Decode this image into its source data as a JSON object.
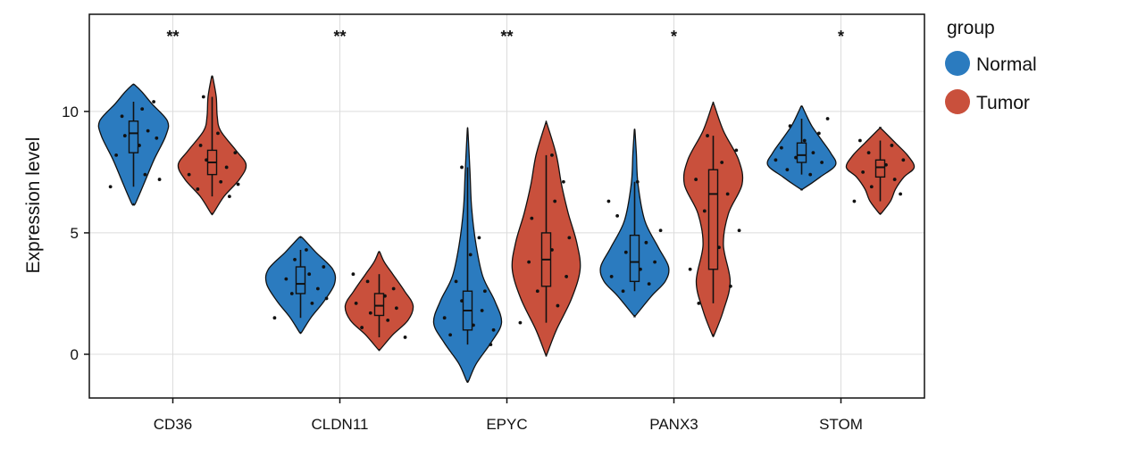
{
  "chart_data": {
    "type": "violin",
    "ylabel": "Expression level",
    "xlabel": "",
    "ylim": [
      -1.8,
      14
    ],
    "yticks": [
      0,
      5,
      10
    ],
    "grid": true,
    "legend": {
      "title": "group",
      "placement": "right",
      "items": [
        {
          "label": "Normal",
          "color": "#2b7bbf"
        },
        {
          "label": "Tumor",
          "color": "#c9503c"
        }
      ]
    },
    "categories": [
      "CD36",
      "CLDN11",
      "EPYC",
      "PANX3",
      "STOM"
    ],
    "significance": [
      "**",
      "**",
      "**",
      "*",
      "*"
    ],
    "series": [
      {
        "name": "Normal",
        "color": "#2b7bbf",
        "groups": [
          {
            "min": 6.2,
            "q1": 8.3,
            "median": 9.1,
            "q3": 9.6,
            "max": 11.1,
            "range": [
              6.9,
              10.4
            ],
            "density": [
              [
                6.2,
                0.05
              ],
              [
                7.0,
                0.3
              ],
              [
                8.0,
                0.6
              ],
              [
                9.0,
                0.95
              ],
              [
                9.6,
                1.0
              ],
              [
                10.3,
                0.55
              ],
              [
                10.8,
                0.25
              ],
              [
                11.1,
                0.03
              ]
            ],
            "points": [
              [
                6.9,
                -0.8
              ],
              [
                7.4,
                0.4
              ],
              [
                8.2,
                -0.6
              ],
              [
                8.6,
                0.2
              ],
              [
                9.0,
                -0.3
              ],
              [
                9.2,
                0.5
              ],
              [
                9.5,
                0.1
              ],
              [
                9.8,
                -0.4
              ],
              [
                10.1,
                0.3
              ],
              [
                10.4,
                0.7
              ],
              [
                8.9,
                0.8
              ],
              [
                7.2,
                0.9
              ]
            ]
          },
          {
            "min": 0.9,
            "q1": 2.5,
            "median": 2.9,
            "q3": 3.6,
            "max": 4.8,
            "range": [
              1.5,
              4.3
            ],
            "density": [
              [
                0.9,
                0.03
              ],
              [
                1.5,
                0.3
              ],
              [
                2.2,
                0.7
              ],
              [
                2.9,
                1.0
              ],
              [
                3.5,
                0.95
              ],
              [
                4.2,
                0.45
              ],
              [
                4.8,
                0.05
              ]
            ],
            "points": [
              [
                1.5,
                -0.9
              ],
              [
                2.1,
                0.4
              ],
              [
                2.5,
                -0.3
              ],
              [
                2.7,
                0.6
              ],
              [
                2.9,
                0.1
              ],
              [
                3.1,
                -0.5
              ],
              [
                3.3,
                0.3
              ],
              [
                3.6,
                0.8
              ],
              [
                3.9,
                -0.2
              ],
              [
                4.3,
                0.2
              ],
              [
                2.3,
                0.9
              ]
            ]
          },
          {
            "min": -1.1,
            "q1": 1.0,
            "median": 1.8,
            "q3": 2.6,
            "max": 9.2,
            "range": [
              0.4,
              7.7
            ],
            "density": [
              [
                -1.1,
                0.03
              ],
              [
                -0.4,
                0.25
              ],
              [
                0.5,
                0.7
              ],
              [
                1.3,
                1.0
              ],
              [
                2.2,
                0.8
              ],
              [
                3.2,
                0.45
              ],
              [
                4.5,
                0.25
              ],
              [
                6.0,
                0.12
              ],
              [
                7.5,
                0.07
              ],
              [
                9.2,
                0.01
              ]
            ],
            "points": [
              [
                0.4,
                0.8
              ],
              [
                0.8,
                -0.6
              ],
              [
                1.2,
                0.2
              ],
              [
                1.5,
                -0.8
              ],
              [
                1.8,
                0.5
              ],
              [
                2.2,
                -0.2
              ],
              [
                2.6,
                0.6
              ],
              [
                3.0,
                -0.4
              ],
              [
                4.1,
                0.1
              ],
              [
                4.8,
                0.4
              ],
              [
                7.7,
                -0.2
              ],
              [
                1.0,
                0.9
              ]
            ]
          },
          {
            "min": 1.6,
            "q1": 3.0,
            "median": 3.8,
            "q3": 4.9,
            "max": 9.2,
            "range": [
              2.6,
              7.1
            ],
            "density": [
              [
                1.6,
                0.03
              ],
              [
                2.4,
                0.5
              ],
              [
                3.0,
                0.9
              ],
              [
                3.6,
                1.0
              ],
              [
                4.4,
                0.7
              ],
              [
                5.5,
                0.3
              ],
              [
                7.0,
                0.1
              ],
              [
                8.3,
                0.05
              ],
              [
                9.2,
                0.01
              ]
            ],
            "points": [
              [
                2.6,
                -0.4
              ],
              [
                2.9,
                0.5
              ],
              [
                3.2,
                -0.8
              ],
              [
                3.5,
                0.2
              ],
              [
                3.8,
                0.7
              ],
              [
                4.2,
                -0.3
              ],
              [
                4.6,
                0.4
              ],
              [
                5.1,
                0.9
              ],
              [
                5.7,
                -0.6
              ],
              [
                6.3,
                -0.9
              ],
              [
                7.1,
                0.1
              ]
            ]
          },
          {
            "min": 6.8,
            "q1": 7.9,
            "median": 8.2,
            "q3": 8.7,
            "max": 10.2,
            "range": [
              7.4,
              9.7
            ],
            "density": [
              [
                6.8,
                0.03
              ],
              [
                7.3,
                0.55
              ],
              [
                7.8,
                1.0
              ],
              [
                8.3,
                0.85
              ],
              [
                8.8,
                0.6
              ],
              [
                9.4,
                0.3
              ],
              [
                9.9,
                0.12
              ],
              [
                10.2,
                0.02
              ]
            ],
            "points": [
              [
                7.4,
                0.3
              ],
              [
                7.6,
                -0.5
              ],
              [
                7.9,
                0.7
              ],
              [
                8.1,
                -0.2
              ],
              [
                8.3,
                0.4
              ],
              [
                8.5,
                -0.7
              ],
              [
                8.8,
                0.1
              ],
              [
                9.1,
                0.6
              ],
              [
                9.4,
                -0.4
              ],
              [
                9.7,
                0.9
              ],
              [
                8.0,
                -0.9
              ]
            ]
          }
        ]
      },
      {
        "name": "Tumor",
        "color": "#c9503c",
        "groups": [
          {
            "min": 5.8,
            "q1": 7.4,
            "median": 7.9,
            "q3": 8.4,
            "max": 11.4,
            "range": [
              6.5,
              10.6
            ],
            "density": [
              [
                5.8,
                0.03
              ],
              [
                6.5,
                0.35
              ],
              [
                7.2,
                0.8
              ],
              [
                7.8,
                1.0
              ],
              [
                8.4,
                0.7
              ],
              [
                9.2,
                0.25
              ],
              [
                9.8,
                0.15
              ],
              [
                10.6,
                0.12
              ],
              [
                11.4,
                0.02
              ]
            ],
            "points": [
              [
                6.5,
                0.6
              ],
              [
                6.8,
                -0.5
              ],
              [
                7.1,
                0.3
              ],
              [
                7.4,
                -0.8
              ],
              [
                7.7,
                0.5
              ],
              [
                8.0,
                -0.2
              ],
              [
                8.3,
                0.8
              ],
              [
                8.6,
                -0.4
              ],
              [
                9.1,
                0.2
              ],
              [
                10.6,
                -0.3
              ],
              [
                7.0,
                0.9
              ]
            ]
          },
          {
            "min": 0.2,
            "q1": 1.6,
            "median": 2.0,
            "q3": 2.5,
            "max": 4.2,
            "range": [
              0.7,
              3.3
            ],
            "density": [
              [
                0.2,
                0.03
              ],
              [
                0.8,
                0.4
              ],
              [
                1.4,
                0.85
              ],
              [
                2.0,
                1.0
              ],
              [
                2.6,
                0.75
              ],
              [
                3.3,
                0.4
              ],
              [
                3.8,
                0.15
              ],
              [
                4.2,
                0.02
              ]
            ],
            "points": [
              [
                0.7,
                0.9
              ],
              [
                1.1,
                -0.6
              ],
              [
                1.4,
                0.3
              ],
              [
                1.7,
                -0.3
              ],
              [
                1.9,
                0.6
              ],
              [
                2.1,
                -0.8
              ],
              [
                2.4,
                0.2
              ],
              [
                2.7,
                0.5
              ],
              [
                3.0,
                -0.4
              ],
              [
                3.3,
                -0.9
              ]
            ]
          },
          {
            "min": 0.0,
            "q1": 2.8,
            "median": 3.9,
            "q3": 5.0,
            "max": 9.5,
            "range": [
              1.3,
              8.2
            ],
            "density": [
              [
                0.0,
                0.02
              ],
              [
                1.0,
                0.3
              ],
              [
                2.3,
                0.75
              ],
              [
                3.5,
                1.0
              ],
              [
                4.6,
                0.9
              ],
              [
                5.8,
                0.65
              ],
              [
                7.0,
                0.45
              ],
              [
                8.2,
                0.3
              ],
              [
                9.5,
                0.02
              ]
            ],
            "points": [
              [
                1.3,
                -0.9
              ],
              [
                2.0,
                0.4
              ],
              [
                2.6,
                -0.3
              ],
              [
                3.2,
                0.7
              ],
              [
                3.8,
                -0.6
              ],
              [
                4.3,
                0.2
              ],
              [
                4.8,
                0.8
              ],
              [
                5.6,
                -0.5
              ],
              [
                6.3,
                0.3
              ],
              [
                7.1,
                0.6
              ],
              [
                8.2,
                0.2
              ]
            ]
          },
          {
            "min": 0.8,
            "q1": 3.5,
            "median": 6.6,
            "q3": 7.6,
            "max": 10.3,
            "range": [
              2.1,
              9.0
            ],
            "density": [
              [
                0.8,
                0.03
              ],
              [
                1.8,
                0.3
              ],
              [
                3.0,
                0.5
              ],
              [
                4.5,
                0.3
              ],
              [
                5.8,
                0.45
              ],
              [
                7.0,
                0.85
              ],
              [
                8.0,
                0.75
              ],
              [
                9.2,
                0.3
              ],
              [
                10.3,
                0.02
              ]
            ],
            "points": [
              [
                2.1,
                -0.5
              ],
              [
                2.8,
                0.6
              ],
              [
                3.5,
                -0.8
              ],
              [
                4.4,
                0.2
              ],
              [
                5.1,
                0.9
              ],
              [
                5.9,
                -0.3
              ],
              [
                6.6,
                0.5
              ],
              [
                7.2,
                -0.6
              ],
              [
                7.9,
                0.3
              ],
              [
                8.4,
                0.8
              ],
              [
                9.0,
                -0.2
              ]
            ]
          },
          {
            "min": 5.8,
            "q1": 7.3,
            "median": 7.7,
            "q3": 8.0,
            "max": 9.3,
            "range": [
              6.3,
              8.8
            ],
            "density": [
              [
                5.8,
                0.03
              ],
              [
                6.3,
                0.3
              ],
              [
                6.8,
                0.45
              ],
              [
                7.3,
                0.7
              ],
              [
                7.7,
                1.0
              ],
              [
                8.2,
                0.8
              ],
              [
                8.7,
                0.45
              ],
              [
                9.3,
                0.02
              ]
            ],
            "points": [
              [
                6.3,
                -0.9
              ],
              [
                6.6,
                0.7
              ],
              [
                6.9,
                -0.3
              ],
              [
                7.2,
                0.5
              ],
              [
                7.5,
                -0.6
              ],
              [
                7.8,
                0.2
              ],
              [
                8.0,
                0.8
              ],
              [
                8.3,
                -0.4
              ],
              [
                8.6,
                0.4
              ],
              [
                8.8,
                -0.7
              ]
            ]
          }
        ]
      }
    ]
  }
}
